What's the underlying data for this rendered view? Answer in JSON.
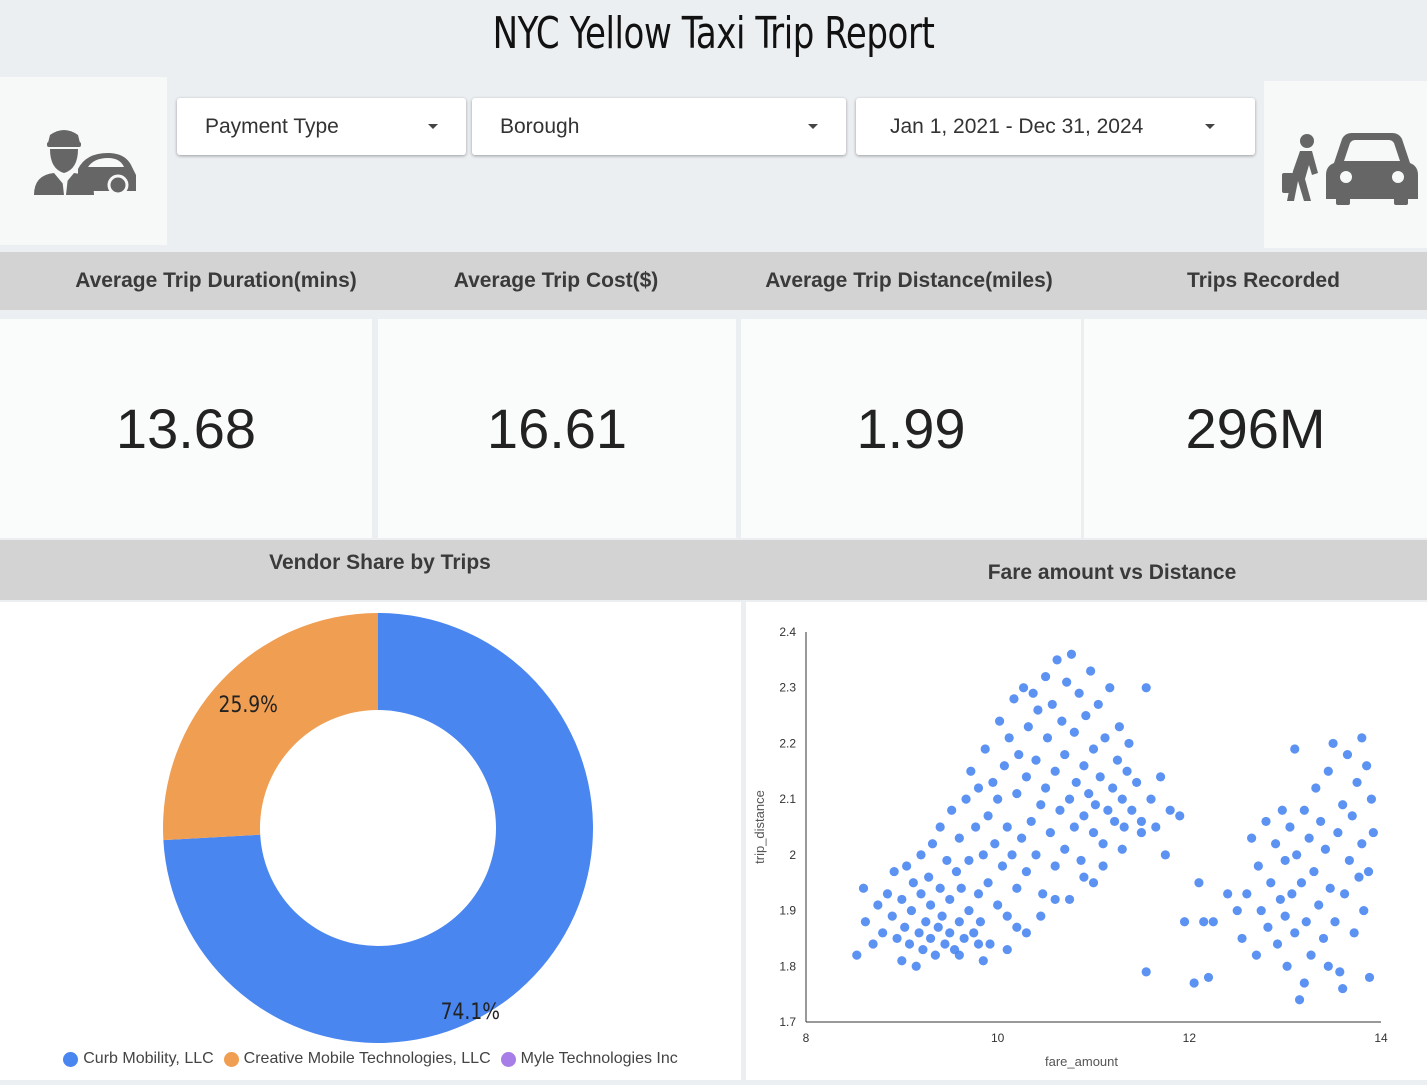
{
  "header": {
    "title": "NYC Yellow Taxi Trip Report"
  },
  "filters": {
    "payment_type": "Payment Type",
    "borough": "Borough",
    "date_range": "Jan 1, 2021 - Dec 31, 2024"
  },
  "icons": {
    "left": "taxi-driver-icon",
    "right": "traveler-car-icon"
  },
  "kpis": [
    {
      "label": "Average Trip Duration(mins)",
      "value": "13.68"
    },
    {
      "label": "Average Trip Cost($)",
      "value": "16.61"
    },
    {
      "label": "Average Trip Distance(miles)",
      "value": "1.99"
    },
    {
      "label": "Trips Recorded",
      "value": "296M"
    }
  ],
  "sections": {
    "vendor_title": "Vendor Share by Trips",
    "scatter_title": "Fare amount vs Distance"
  },
  "legend": [
    {
      "label": "Curb Mobility, LLC",
      "color": "#4a86f0"
    },
    {
      "label": "Creative Mobile Technologies, LLC",
      "color": "#f09e52"
    },
    {
      "label": "Myle Technologies Inc",
      "color": "#a77ee8"
    }
  ],
  "chart_data": [
    {
      "type": "pie",
      "title": "Vendor Share by Trips",
      "donut": true,
      "slices": [
        {
          "name": "Curb Mobility, LLC",
          "value": 74.1,
          "label": "74.1%",
          "color": "#4a86f0"
        },
        {
          "name": "Creative Mobile Technologies, LLC",
          "value": 25.9,
          "label": "25.9%",
          "color": "#f09e52"
        },
        {
          "name": "Myle Technologies Inc",
          "value": 0,
          "label": "",
          "color": "#a77ee8"
        }
      ],
      "legend_position": "bottom"
    },
    {
      "type": "scatter",
      "title": "Fare amount vs Distance",
      "xlabel": "fare_amount",
      "ylabel": "trip_distance",
      "xlim": [
        8,
        14
      ],
      "ylim": [
        1.7,
        2.4
      ],
      "xticks": [
        "8",
        "10",
        "12",
        "14"
      ],
      "yticks": [
        "1.7",
        "1.8",
        "1.9",
        "2",
        "2.1",
        "2.2",
        "2.3",
        "2.4"
      ],
      "color": "#4a86f0",
      "points": [
        [
          8.53,
          1.82
        ],
        [
          8.6,
          1.94
        ],
        [
          8.62,
          1.88
        ],
        [
          8.7,
          1.84
        ],
        [
          8.75,
          1.91
        ],
        [
          8.8,
          1.86
        ],
        [
          8.85,
          1.93
        ],
        [
          8.9,
          1.89
        ],
        [
          8.92,
          1.97
        ],
        [
          8.95,
          1.85
        ],
        [
          9.0,
          1.81
        ],
        [
          9.0,
          1.92
        ],
        [
          9.03,
          1.87
        ],
        [
          9.05,
          1.98
        ],
        [
          9.08,
          1.84
        ],
        [
          9.1,
          1.9
        ],
        [
          9.12,
          1.95
        ],
        [
          9.15,
          1.8
        ],
        [
          9.18,
          1.86
        ],
        [
          9.2,
          1.93
        ],
        [
          9.2,
          2.0
        ],
        [
          9.22,
          1.83
        ],
        [
          9.25,
          1.88
        ],
        [
          9.28,
          1.96
        ],
        [
          9.3,
          1.85
        ],
        [
          9.3,
          1.91
        ],
        [
          9.32,
          2.02
        ],
        [
          9.35,
          1.82
        ],
        [
          9.38,
          1.87
        ],
        [
          9.4,
          1.94
        ],
        [
          9.4,
          2.05
        ],
        [
          9.42,
          1.89
        ],
        [
          9.45,
          1.84
        ],
        [
          9.47,
          1.99
        ],
        [
          9.5,
          1.86
        ],
        [
          9.5,
          1.92
        ],
        [
          9.52,
          2.08
        ],
        [
          9.55,
          1.83
        ],
        [
          9.57,
          1.97
        ],
        [
          9.6,
          1.88
        ],
        [
          9.6,
          2.03
        ],
        [
          9.62,
          1.94
        ],
        [
          9.65,
          1.85
        ],
        [
          9.67,
          2.1
        ],
        [
          9.7,
          1.9
        ],
        [
          9.7,
          1.99
        ],
        [
          9.72,
          2.15
        ],
        [
          9.75,
          1.86
        ],
        [
          9.77,
          2.05
        ],
        [
          9.8,
          1.93
        ],
        [
          9.8,
          2.12
        ],
        [
          9.82,
          1.88
        ],
        [
          9.85,
          2.0
        ],
        [
          9.87,
          2.19
        ],
        [
          9.9,
          1.95
        ],
        [
          9.9,
          2.07
        ],
        [
          9.92,
          1.84
        ],
        [
          9.95,
          2.13
        ],
        [
          9.97,
          2.02
        ],
        [
          10.0,
          1.91
        ],
        [
          10.0,
          2.1
        ],
        [
          10.02,
          2.24
        ],
        [
          10.05,
          1.98
        ],
        [
          10.07,
          2.16
        ],
        [
          10.1,
          1.89
        ],
        [
          10.1,
          2.05
        ],
        [
          10.12,
          2.21
        ],
        [
          10.15,
          2.0
        ],
        [
          10.17,
          2.28
        ],
        [
          10.2,
          1.94
        ],
        [
          10.2,
          2.11
        ],
        [
          10.22,
          2.18
        ],
        [
          10.25,
          2.03
        ],
        [
          10.27,
          2.3
        ],
        [
          10.3,
          1.97
        ],
        [
          10.3,
          2.14
        ],
        [
          10.32,
          2.23
        ],
        [
          10.35,
          2.06
        ],
        [
          10.37,
          2.29
        ],
        [
          10.4,
          2.0
        ],
        [
          10.4,
          2.17
        ],
        [
          10.42,
          2.26
        ],
        [
          10.45,
          2.09
        ],
        [
          10.47,
          1.93
        ],
        [
          10.5,
          2.12
        ],
        [
          10.5,
          2.32
        ],
        [
          10.52,
          2.21
        ],
        [
          10.55,
          2.04
        ],
        [
          10.57,
          2.27
        ],
        [
          10.6,
          2.15
        ],
        [
          10.6,
          1.98
        ],
        [
          10.62,
          2.35
        ],
        [
          10.65,
          2.08
        ],
        [
          10.67,
          2.24
        ],
        [
          10.7,
          2.01
        ],
        [
          10.7,
          2.18
        ],
        [
          10.72,
          2.31
        ],
        [
          10.75,
          2.1
        ],
        [
          10.77,
          2.36
        ],
        [
          10.8,
          2.05
        ],
        [
          10.8,
          2.22
        ],
        [
          10.82,
          2.13
        ],
        [
          10.85,
          2.29
        ],
        [
          10.87,
          1.99
        ],
        [
          10.9,
          2.16
        ],
        [
          10.9,
          2.07
        ],
        [
          10.92,
          2.25
        ],
        [
          10.95,
          2.11
        ],
        [
          10.97,
          2.33
        ],
        [
          11.0,
          2.04
        ],
        [
          11.0,
          2.19
        ],
        [
          11.02,
          2.09
        ],
        [
          11.05,
          2.27
        ],
        [
          11.07,
          2.14
        ],
        [
          11.1,
          2.02
        ],
        [
          11.12,
          2.21
        ],
        [
          11.15,
          2.08
        ],
        [
          11.17,
          2.3
        ],
        [
          11.2,
          2.12
        ],
        [
          11.22,
          2.06
        ],
        [
          11.25,
          2.17
        ],
        [
          11.27,
          2.23
        ],
        [
          11.3,
          2.1
        ],
        [
          11.32,
          2.05
        ],
        [
          11.35,
          2.15
        ],
        [
          11.37,
          2.2
        ],
        [
          11.4,
          2.08
        ],
        [
          11.45,
          2.13
        ],
        [
          11.5,
          2.04
        ],
        [
          11.55,
          2.3
        ],
        [
          11.6,
          2.1
        ],
        [
          11.65,
          2.05
        ],
        [
          11.7,
          2.14
        ],
        [
          11.75,
          2.0
        ],
        [
          11.8,
          2.08
        ],
        [
          11.9,
          2.07
        ],
        [
          9.6,
          1.82
        ],
        [
          9.8,
          1.84
        ],
        [
          10.1,
          1.83
        ],
        [
          10.3,
          1.86
        ],
        [
          10.6,
          1.92
        ],
        [
          10.9,
          1.96
        ],
        [
          11.1,
          1.98
        ],
        [
          11.3,
          2.01
        ],
        [
          11.5,
          2.06
        ],
        [
          11.0,
          1.95
        ],
        [
          10.75,
          1.92
        ],
        [
          10.45,
          1.89
        ],
        [
          10.2,
          1.87
        ],
        [
          9.85,
          1.81
        ],
        [
          11.55,
          1.79
        ],
        [
          12.05,
          1.77
        ],
        [
          11.95,
          1.88
        ],
        [
          12.1,
          1.95
        ],
        [
          12.15,
          1.88
        ],
        [
          12.25,
          1.88
        ],
        [
          12.2,
          1.78
        ],
        [
          12.4,
          1.93
        ],
        [
          12.5,
          1.9
        ],
        [
          12.55,
          1.85
        ],
        [
          12.6,
          1.93
        ],
        [
          12.65,
          2.03
        ],
        [
          12.7,
          1.82
        ],
        [
          12.72,
          1.98
        ],
        [
          12.75,
          1.9
        ],
        [
          12.8,
          2.06
        ],
        [
          12.82,
          1.87
        ],
        [
          12.85,
          1.95
        ],
        [
          12.9,
          2.02
        ],
        [
          12.92,
          1.84
        ],
        [
          12.95,
          1.92
        ],
        [
          12.97,
          2.08
        ],
        [
          13.0,
          1.89
        ],
        [
          13.0,
          1.99
        ],
        [
          13.02,
          1.8
        ],
        [
          13.05,
          2.05
        ],
        [
          13.07,
          1.93
        ],
        [
          13.1,
          2.19
        ],
        [
          13.1,
          1.86
        ],
        [
          13.12,
          2.0
        ],
        [
          13.15,
          1.74
        ],
        [
          13.17,
          1.95
        ],
        [
          13.2,
          2.08
        ],
        [
          13.22,
          1.88
        ],
        [
          13.25,
          2.03
        ],
        [
          13.27,
          1.82
        ],
        [
          13.3,
          1.97
        ],
        [
          13.32,
          2.12
        ],
        [
          13.35,
          1.91
        ],
        [
          13.37,
          2.06
        ],
        [
          13.4,
          1.85
        ],
        [
          13.42,
          2.01
        ],
        [
          13.45,
          2.15
        ],
        [
          13.47,
          1.94
        ],
        [
          13.5,
          2.2
        ],
        [
          13.52,
          1.88
        ],
        [
          13.55,
          2.04
        ],
        [
          13.57,
          1.79
        ],
        [
          13.6,
          2.09
        ],
        [
          13.62,
          1.93
        ],
        [
          13.65,
          2.18
        ],
        [
          13.67,
          1.99
        ],
        [
          13.7,
          2.07
        ],
        [
          13.72,
          1.86
        ],
        [
          13.75,
          2.13
        ],
        [
          13.77,
          1.96
        ],
        [
          13.8,
          2.21
        ],
        [
          13.8,
          2.02
        ],
        [
          13.82,
          1.9
        ],
        [
          13.85,
          2.16
        ],
        [
          13.87,
          1.97
        ],
        [
          13.88,
          1.78
        ],
        [
          13.9,
          2.1
        ],
        [
          13.92,
          2.04
        ],
        [
          13.6,
          1.76
        ],
        [
          13.45,
          1.8
        ],
        [
          13.2,
          1.77
        ]
      ]
    }
  ]
}
